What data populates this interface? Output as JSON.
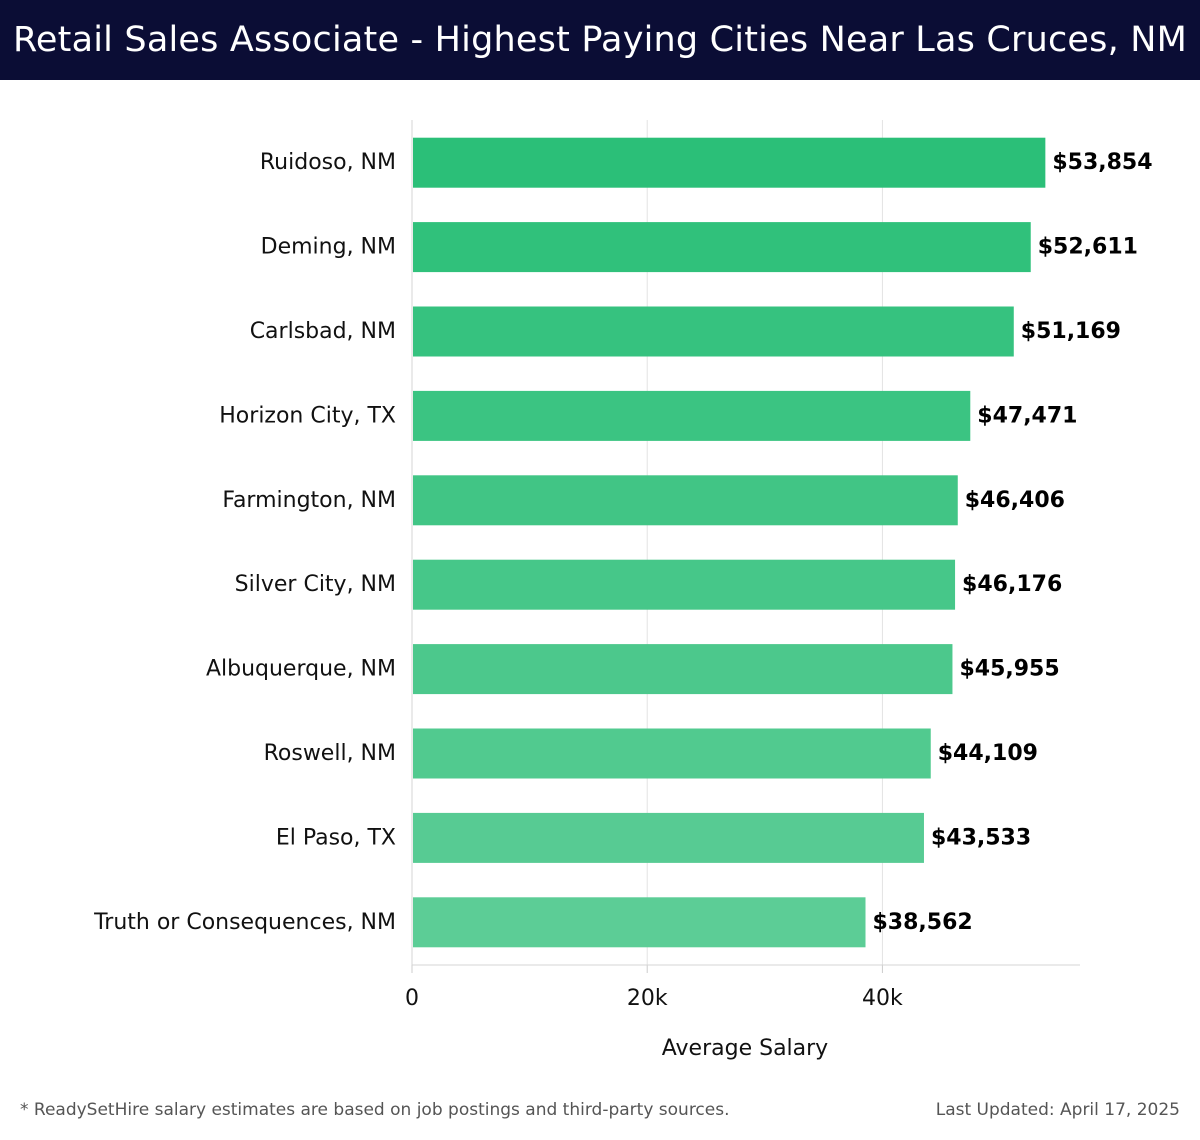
{
  "header": {
    "title": "Retail Sales Associate - Highest Paying Cities Near Las Cruces, NM"
  },
  "chart_data": {
    "type": "bar",
    "orientation": "horizontal",
    "categories": [
      "Ruidoso, NM",
      "Deming, NM",
      "Carlsbad, NM",
      "Horizon City, TX",
      "Farmington, NM",
      "Silver City, NM",
      "Albuquerque, NM",
      "Roswell, NM",
      "El Paso, TX",
      "Truth or Consequences, NM"
    ],
    "values": [
      53854,
      52611,
      51169,
      47471,
      46406,
      46176,
      45955,
      44109,
      43533,
      38562
    ],
    "value_labels": [
      "$53,854",
      "$52,611",
      "$51,169",
      "$47,471",
      "$46,406",
      "$46,176",
      "$45,955",
      "$44,109",
      "$43,533",
      "$38,562"
    ],
    "xlabel": "Average Salary",
    "ylabel": "",
    "xlim": [
      0,
      56800
    ],
    "x_ticks": [
      0,
      20000,
      40000
    ],
    "x_tick_labels": [
      "0",
      "20k",
      "40k"
    ],
    "grid": "vertical",
    "legend": "none",
    "bar_color_top": "#2bbf78",
    "bar_color_bottom": "#5ccd96"
  },
  "footer": {
    "note": "* ReadySetHire salary estimates are based on job postings and third-party sources.",
    "updated": "Last Updated: April 17, 2025"
  }
}
